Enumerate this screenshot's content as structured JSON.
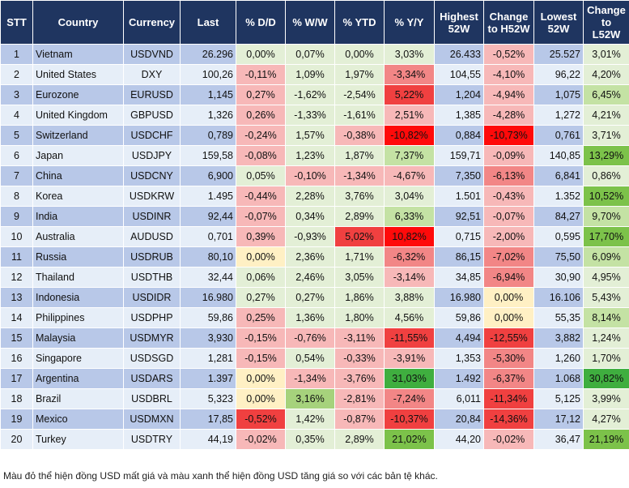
{
  "headers": [
    "STT",
    "Country",
    "Currency",
    "Last",
    "% D/D",
    "% W/W",
    "% YTD",
    "% Y/Y",
    "Highest 52W",
    "Change to H52W",
    "Lowest 52W",
    "Change to L52W"
  ],
  "shade_legend": {
    "g0": "#e3efd6",
    "g1": "#c4e2a4",
    "g2": "#a6d27c",
    "g3": "#7cc24a",
    "g4": "#3fae3f",
    "r1": "#f7b8b8",
    "r2": "#f28686",
    "r3": "#f04040",
    "r4": "#ff0a0a",
    "y": "#fff0c4"
  },
  "rows": [
    {
      "stt": "1",
      "country": "Vietnam",
      "currency": "USDVND",
      "last": "26.296",
      "dd": "0,00%",
      "ww": "0,07%",
      "ytd": "0,00%",
      "yy": "3,03%",
      "high": "26.433",
      "chh": "-0,52%",
      "low": "25.527",
      "chl": "3,01%",
      "shade": [
        "g0",
        "g0",
        "g0",
        "g0",
        "r1",
        "g0"
      ]
    },
    {
      "stt": "2",
      "country": "United States",
      "currency": "DXY",
      "last": "100,26",
      "dd": "-0,11%",
      "ww": "1,09%",
      "ytd": "1,97%",
      "yy": "-3,34%",
      "high": "104,55",
      "chh": "-4,10%",
      "low": "96,22",
      "chl": "4,20%",
      "shade": [
        "r1",
        "g0",
        "g0",
        "r2",
        "r1",
        "g0"
      ]
    },
    {
      "stt": "3",
      "country": "Eurozone",
      "currency": "EURUSD",
      "last": "1,145",
      "dd": "0,27%",
      "ww": "-1,62%",
      "ytd": "-2,54%",
      "yy": "5,22%",
      "high": "1,204",
      "chh": "-4,94%",
      "low": "1,075",
      "chl": "6,45%",
      "shade": [
        "r1",
        "g0",
        "g0",
        "r3",
        "r1",
        "g1"
      ]
    },
    {
      "stt": "4",
      "country": "United Kingdom",
      "currency": "GBPUSD",
      "last": "1,326",
      "dd": "0,26%",
      "ww": "-1,33%",
      "ytd": "-1,61%",
      "yy": "2,51%",
      "high": "1,385",
      "chh": "-4,28%",
      "low": "1,272",
      "chl": "4,21%",
      "shade": [
        "r1",
        "g0",
        "g0",
        "r1",
        "r1",
        "g0"
      ]
    },
    {
      "stt": "5",
      "country": "Switzerland",
      "currency": "USDCHF",
      "last": "0,789",
      "dd": "-0,24%",
      "ww": "1,57%",
      "ytd": "-0,38%",
      "yy": "-10,82%",
      "high": "0,884",
      "chh": "-10,73%",
      "low": "0,761",
      "chl": "3,71%",
      "shade": [
        "r1",
        "g0",
        "r1",
        "r4",
        "r4",
        "g0"
      ]
    },
    {
      "stt": "6",
      "country": "Japan",
      "currency": "USDJPY",
      "last": "159,58",
      "dd": "-0,08%",
      "ww": "1,23%",
      "ytd": "1,87%",
      "yy": "7,37%",
      "high": "159,71",
      "chh": "-0,09%",
      "low": "140,85",
      "chl": "13,29%",
      "shade": [
        "r1",
        "g0",
        "g0",
        "g1",
        "r1",
        "g3"
      ]
    },
    {
      "stt": "7",
      "country": "China",
      "currency": "USDCNY",
      "last": "6,900",
      "dd": "0,05%",
      "ww": "-0,10%",
      "ytd": "-1,34%",
      "yy": "-4,67%",
      "high": "7,350",
      "chh": "-6,13%",
      "low": "6,841",
      "chl": "0,86%",
      "shade": [
        "g0",
        "r1",
        "r1",
        "r1",
        "r2",
        "g0"
      ]
    },
    {
      "stt": "8",
      "country": "Korea",
      "currency": "USDKRW",
      "last": "1.495",
      "dd": "-0,44%",
      "ww": "2,28%",
      "ytd": "3,76%",
      "yy": "3,04%",
      "high": "1.501",
      "chh": "-0,43%",
      "low": "1.352",
      "chl": "10,52%",
      "shade": [
        "r1",
        "g0",
        "g0",
        "g0",
        "r1",
        "g3"
      ]
    },
    {
      "stt": "9",
      "country": "India",
      "currency": "USDINR",
      "last": "92,44",
      "dd": "-0,07%",
      "ww": "0,34%",
      "ytd": "2,89%",
      "yy": "6,33%",
      "high": "92,51",
      "chh": "-0,07%",
      "low": "84,27",
      "chl": "9,70%",
      "shade": [
        "r1",
        "g0",
        "g0",
        "g1",
        "r1",
        "g1"
      ]
    },
    {
      "stt": "10",
      "country": "Australia",
      "currency": "AUDUSD",
      "last": "0,701",
      "dd": "0,39%",
      "ww": "-0,93%",
      "ytd": "5,02%",
      "yy": "10,82%",
      "high": "0,715",
      "chh": "-2,00%",
      "low": "0,595",
      "chl": "17,70%",
      "shade": [
        "r1",
        "g0",
        "r3",
        "r4",
        "r1",
        "g3"
      ]
    },
    {
      "stt": "11",
      "country": "Russia",
      "currency": "USDRUB",
      "last": "80,10",
      "dd": "0,00%",
      "ww": "2,36%",
      "ytd": "1,71%",
      "yy": "-6,32%",
      "high": "86,15",
      "chh": "-7,02%",
      "low": "75,50",
      "chl": "6,09%",
      "shade": [
        "y",
        "g0",
        "g0",
        "r2",
        "r2",
        "g1"
      ]
    },
    {
      "stt": "12",
      "country": "Thailand",
      "currency": "USDTHB",
      "last": "32,44",
      "dd": "0,06%",
      "ww": "2,46%",
      "ytd": "3,05%",
      "yy": "-3,14%",
      "high": "34,85",
      "chh": "-6,94%",
      "low": "30,90",
      "chl": "4,95%",
      "shade": [
        "g0",
        "g0",
        "g0",
        "r1",
        "r2",
        "g0"
      ]
    },
    {
      "stt": "13",
      "country": "Indonesia",
      "currency": "USDIDR",
      "last": "16.980",
      "dd": "0,27%",
      "ww": "0,27%",
      "ytd": "1,86%",
      "yy": "3,88%",
      "high": "16.980",
      "chh": "0,00%",
      "low": "16.106",
      "chl": "5,43%",
      "shade": [
        "g0",
        "g0",
        "g0",
        "g0",
        "y",
        "g0"
      ]
    },
    {
      "stt": "14",
      "country": "Philippines",
      "currency": "USDPHP",
      "last": "59,86",
      "dd": "0,25%",
      "ww": "1,36%",
      "ytd": "1,80%",
      "yy": "4,56%",
      "high": "59,86",
      "chh": "0,00%",
      "low": "55,35",
      "chl": "8,14%",
      "shade": [
        "r1",
        "g0",
        "g0",
        "g0",
        "y",
        "g1"
      ]
    },
    {
      "stt": "15",
      "country": "Malaysia",
      "currency": "USDMYR",
      "last": "3,930",
      "dd": "-0,15%",
      "ww": "-0,76%",
      "ytd": "-3,11%",
      "yy": "-11,55%",
      "high": "4,494",
      "chh": "-12,55%",
      "low": "3,882",
      "chl": "1,24%",
      "shade": [
        "r1",
        "r1",
        "r1",
        "r3",
        "r3",
        "g0"
      ]
    },
    {
      "stt": "16",
      "country": "Singapore",
      "currency": "USDSGD",
      "last": "1,281",
      "dd": "-0,15%",
      "ww": "0,54%",
      "ytd": "-0,33%",
      "yy": "-3,91%",
      "high": "1,353",
      "chh": "-5,30%",
      "low": "1,260",
      "chl": "1,70%",
      "shade": [
        "r1",
        "g0",
        "r1",
        "r1",
        "r2",
        "g0"
      ]
    },
    {
      "stt": "17",
      "country": "Argentina",
      "currency": "USDARS",
      "last": "1.397",
      "dd": "0,00%",
      "ww": "-1,34%",
      "ytd": "-3,76%",
      "yy": "31,03%",
      "high": "1.492",
      "chh": "-6,37%",
      "low": "1.068",
      "chl": "30,82%",
      "shade": [
        "y",
        "r1",
        "r1",
        "g4",
        "r2",
        "g4"
      ]
    },
    {
      "stt": "18",
      "country": "Brazil",
      "currency": "USDBRL",
      "last": "5,323",
      "dd": "0,00%",
      "ww": "3,16%",
      "ytd": "-2,81%",
      "yy": "-7,24%",
      "high": "6,011",
      "chh": "-11,34%",
      "low": "5,125",
      "chl": "3,99%",
      "shade": [
        "y",
        "g2",
        "r1",
        "r2",
        "r3",
        "g0"
      ]
    },
    {
      "stt": "19",
      "country": "Mexico",
      "currency": "USDMXN",
      "last": "17,85",
      "dd": "-0,52%",
      "ww": "1,42%",
      "ytd": "-0,87%",
      "yy": "-10,37%",
      "high": "20,84",
      "chh": "-14,36%",
      "low": "17,12",
      "chl": "4,27%",
      "shade": [
        "r3",
        "g0",
        "r1",
        "r3",
        "r3",
        "g0"
      ]
    },
    {
      "stt": "20",
      "country": "Turkey",
      "currency": "USDTRY",
      "last": "44,19",
      "dd": "-0,02%",
      "ww": "0,35%",
      "ytd": "2,89%",
      "yy": "21,02%",
      "high": "44,20",
      "chh": "-0,02%",
      "low": "36,47",
      "chl": "21,19%",
      "shade": [
        "r1",
        "g0",
        "g0",
        "g3",
        "r1",
        "g3"
      ]
    }
  ],
  "footnote": "Màu đỏ thể hiện đồng USD mất giá và màu xanh thể hiện đồng USD tăng giá so với các bản tệ khác."
}
